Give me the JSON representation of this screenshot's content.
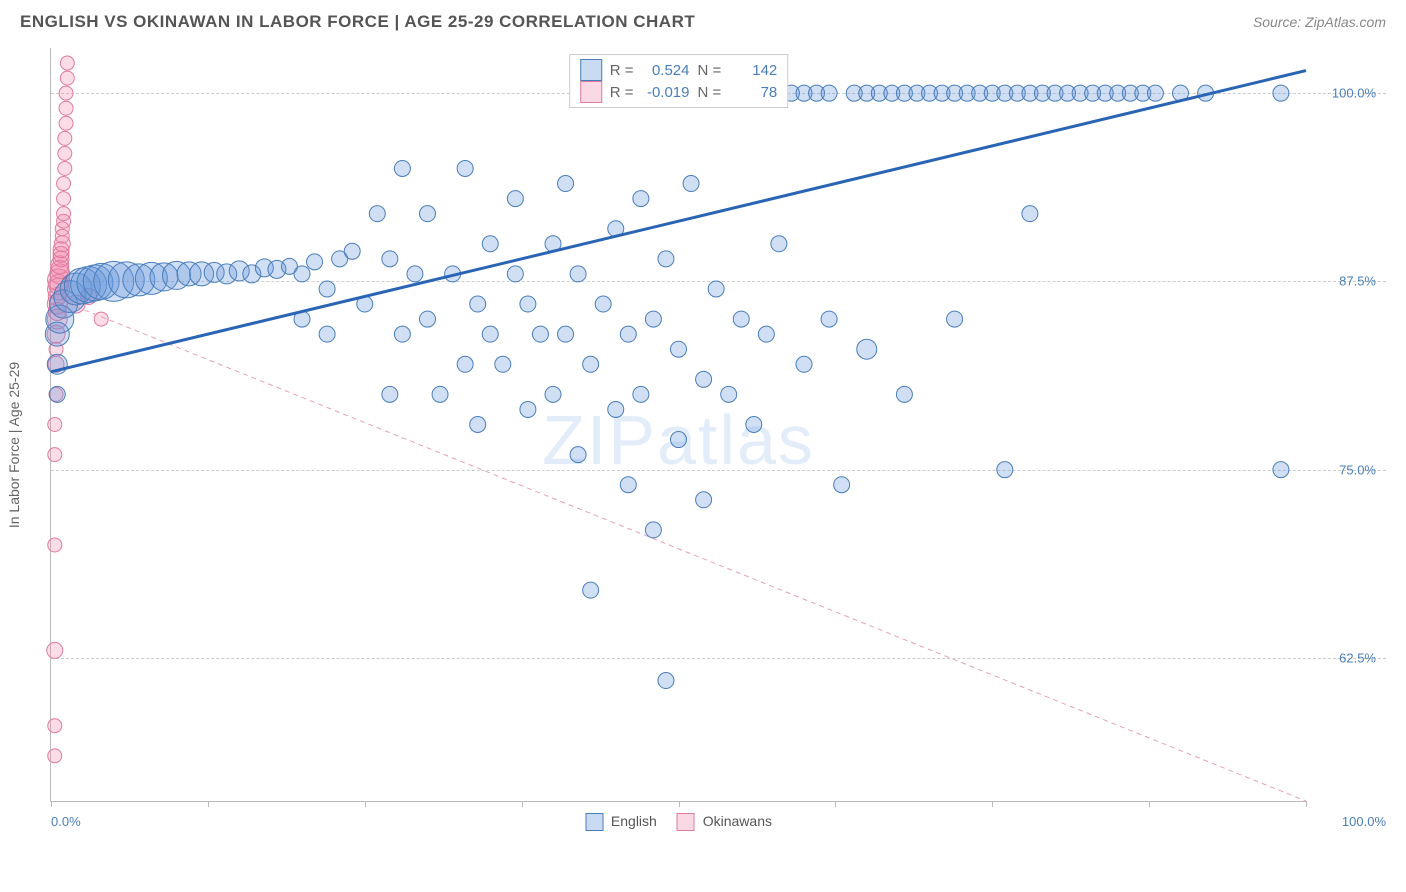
{
  "header": {
    "title": "ENGLISH VS OKINAWAN IN LABOR FORCE | AGE 25-29 CORRELATION CHART",
    "source": "Source: ZipAtlas.com"
  },
  "chart": {
    "type": "scatter",
    "ylabel": "In Labor Force | Age 25-29",
    "xlim": [
      0,
      100
    ],
    "ylim": [
      53,
      103
    ],
    "xticks": [
      0,
      12.5,
      25,
      37.5,
      50,
      62.5,
      75,
      87.5,
      100
    ],
    "x_axis_labels": {
      "left": "0.0%",
      "right": "100.0%"
    },
    "yticks": [
      {
        "v": 62.5,
        "label": "62.5%"
      },
      {
        "v": 75.0,
        "label": "75.0%"
      },
      {
        "v": 87.5,
        "label": "87.5%"
      },
      {
        "v": 100.0,
        "label": "100.0%"
      }
    ],
    "background_color": "#ffffff",
    "grid_color": "#cccccc",
    "watermark": "ZIPatlas",
    "series": {
      "english": {
        "label": "English",
        "color_fill": "rgba(100,150,220,0.30)",
        "color_stroke": "#4a7ebb",
        "marker_r_base": 7,
        "trend": {
          "x1": 0,
          "y1": 81.5,
          "x2": 100,
          "y2": 101.5,
          "stroke": "#2a64b4",
          "width": 3,
          "dash": "none"
        },
        "stats": {
          "R": "0.524",
          "N": "142"
        },
        "points": [
          {
            "x": 0.5,
            "y": 80,
            "r": 8
          },
          {
            "x": 0.5,
            "y": 82,
            "r": 10
          },
          {
            "x": 0.5,
            "y": 84,
            "r": 12
          },
          {
            "x": 0.7,
            "y": 85,
            "r": 14
          },
          {
            "x": 1,
            "y": 86,
            "r": 14
          },
          {
            "x": 1.5,
            "y": 86.5,
            "r": 16
          },
          {
            "x": 2,
            "y": 87,
            "r": 16
          },
          {
            "x": 2.5,
            "y": 87.2,
            "r": 18
          },
          {
            "x": 3,
            "y": 87.3,
            "r": 18
          },
          {
            "x": 3.5,
            "y": 87.4,
            "r": 18
          },
          {
            "x": 4,
            "y": 87.5,
            "r": 18
          },
          {
            "x": 5,
            "y": 87.5,
            "r": 20
          },
          {
            "x": 6,
            "y": 87.6,
            "r": 18
          },
          {
            "x": 7,
            "y": 87.6,
            "r": 16
          },
          {
            "x": 8,
            "y": 87.7,
            "r": 16
          },
          {
            "x": 9,
            "y": 87.8,
            "r": 14
          },
          {
            "x": 10,
            "y": 87.9,
            "r": 14
          },
          {
            "x": 11,
            "y": 88,
            "r": 12
          },
          {
            "x": 12,
            "y": 88,
            "r": 12
          },
          {
            "x": 13,
            "y": 88.1,
            "r": 10
          },
          {
            "x": 14,
            "y": 88,
            "r": 10
          },
          {
            "x": 15,
            "y": 88.2,
            "r": 10
          },
          {
            "x": 16,
            "y": 88,
            "r": 9
          },
          {
            "x": 17,
            "y": 88.4,
            "r": 9
          },
          {
            "x": 18,
            "y": 88.3,
            "r": 9
          },
          {
            "x": 19,
            "y": 88.5,
            "r": 8
          },
          {
            "x": 20,
            "y": 88,
            "r": 8
          },
          {
            "x": 21,
            "y": 88.8,
            "r": 8
          },
          {
            "x": 22,
            "y": 87,
            "r": 8
          },
          {
            "x": 23,
            "y": 89,
            "r": 8
          },
          {
            "x": 24,
            "y": 89.5,
            "r": 8
          },
          {
            "x": 20,
            "y": 85,
            "r": 8
          },
          {
            "x": 22,
            "y": 84,
            "r": 8
          },
          {
            "x": 25,
            "y": 86,
            "r": 8
          },
          {
            "x": 26,
            "y": 92,
            "r": 8
          },
          {
            "x": 27,
            "y": 80,
            "r": 8
          },
          {
            "x": 27,
            "y": 89,
            "r": 8
          },
          {
            "x": 28,
            "y": 95,
            "r": 8
          },
          {
            "x": 28,
            "y": 84,
            "r": 8
          },
          {
            "x": 29,
            "y": 88,
            "r": 8
          },
          {
            "x": 30,
            "y": 85,
            "r": 8
          },
          {
            "x": 30,
            "y": 92,
            "r": 8
          },
          {
            "x": 31,
            "y": 80,
            "r": 8
          },
          {
            "x": 32,
            "y": 88,
            "r": 8
          },
          {
            "x": 33,
            "y": 82,
            "r": 8
          },
          {
            "x": 33,
            "y": 95,
            "r": 8
          },
          {
            "x": 34,
            "y": 86,
            "r": 8
          },
          {
            "x": 34,
            "y": 78,
            "r": 8
          },
          {
            "x": 35,
            "y": 90,
            "r": 8
          },
          {
            "x": 35,
            "y": 84,
            "r": 8
          },
          {
            "x": 36,
            "y": 82,
            "r": 8
          },
          {
            "x": 37,
            "y": 88,
            "r": 8
          },
          {
            "x": 37,
            "y": 93,
            "r": 8
          },
          {
            "x": 38,
            "y": 79,
            "r": 8
          },
          {
            "x": 38,
            "y": 86,
            "r": 8
          },
          {
            "x": 39,
            "y": 84,
            "r": 8
          },
          {
            "x": 40,
            "y": 90,
            "r": 8
          },
          {
            "x": 40,
            "y": 80,
            "r": 8
          },
          {
            "x": 41,
            "y": 94,
            "r": 8
          },
          {
            "x": 41,
            "y": 84,
            "r": 8
          },
          {
            "x": 42,
            "y": 76,
            "r": 8
          },
          {
            "x": 42,
            "y": 88,
            "r": 8
          },
          {
            "x": 43,
            "y": 82,
            "r": 8
          },
          {
            "x": 43,
            "y": 67,
            "r": 8
          },
          {
            "x": 44,
            "y": 86,
            "r": 8
          },
          {
            "x": 45,
            "y": 79,
            "r": 8
          },
          {
            "x": 45,
            "y": 91,
            "r": 8
          },
          {
            "x": 46,
            "y": 84,
            "r": 8
          },
          {
            "x": 46,
            "y": 74,
            "r": 8
          },
          {
            "x": 47,
            "y": 93,
            "r": 8
          },
          {
            "x": 47,
            "y": 80,
            "r": 8
          },
          {
            "x": 48,
            "y": 85,
            "r": 8
          },
          {
            "x": 48,
            "y": 71,
            "r": 8
          },
          {
            "x": 49,
            "y": 89,
            "r": 8
          },
          {
            "x": 49,
            "y": 61,
            "r": 8
          },
          {
            "x": 50,
            "y": 83,
            "r": 8
          },
          {
            "x": 50,
            "y": 77,
            "r": 8
          },
          {
            "x": 51,
            "y": 94,
            "r": 8
          },
          {
            "x": 52,
            "y": 81,
            "r": 8
          },
          {
            "x": 52,
            "y": 73,
            "r": 8
          },
          {
            "x": 53,
            "y": 87,
            "r": 8
          },
          {
            "x": 54,
            "y": 80,
            "r": 8
          },
          {
            "x": 54,
            "y": 100,
            "r": 8
          },
          {
            "x": 55,
            "y": 85,
            "r": 8
          },
          {
            "x": 56,
            "y": 78,
            "r": 8
          },
          {
            "x": 56,
            "y": 100,
            "r": 8
          },
          {
            "x": 57,
            "y": 84,
            "r": 8
          },
          {
            "x": 58,
            "y": 90,
            "r": 8
          },
          {
            "x": 58,
            "y": 100,
            "r": 8
          },
          {
            "x": 59,
            "y": 100,
            "r": 8
          },
          {
            "x": 60,
            "y": 82,
            "r": 8
          },
          {
            "x": 60,
            "y": 100,
            "r": 8
          },
          {
            "x": 61,
            "y": 100,
            "r": 8
          },
          {
            "x": 62,
            "y": 85,
            "r": 8
          },
          {
            "x": 62,
            "y": 100,
            "r": 8
          },
          {
            "x": 63,
            "y": 74,
            "r": 8
          },
          {
            "x": 64,
            "y": 100,
            "r": 8
          },
          {
            "x": 65,
            "y": 83,
            "r": 10
          },
          {
            "x": 65,
            "y": 100,
            "r": 8
          },
          {
            "x": 66,
            "y": 100,
            "r": 8
          },
          {
            "x": 67,
            "y": 100,
            "r": 8
          },
          {
            "x": 68,
            "y": 80,
            "r": 8
          },
          {
            "x": 68,
            "y": 100,
            "r": 8
          },
          {
            "x": 69,
            "y": 100,
            "r": 8
          },
          {
            "x": 70,
            "y": 100,
            "r": 8
          },
          {
            "x": 71,
            "y": 100,
            "r": 8
          },
          {
            "x": 72,
            "y": 100,
            "r": 8
          },
          {
            "x": 72,
            "y": 85,
            "r": 8
          },
          {
            "x": 73,
            "y": 100,
            "r": 8
          },
          {
            "x": 74,
            "y": 100,
            "r": 8
          },
          {
            "x": 75,
            "y": 100,
            "r": 8
          },
          {
            "x": 76,
            "y": 100,
            "r": 8
          },
          {
            "x": 76,
            "y": 75,
            "r": 8
          },
          {
            "x": 77,
            "y": 100,
            "r": 8
          },
          {
            "x": 78,
            "y": 100,
            "r": 8
          },
          {
            "x": 78,
            "y": 92,
            "r": 8
          },
          {
            "x": 79,
            "y": 100,
            "r": 8
          },
          {
            "x": 80,
            "y": 100,
            "r": 8
          },
          {
            "x": 81,
            "y": 100,
            "r": 8
          },
          {
            "x": 82,
            "y": 100,
            "r": 8
          },
          {
            "x": 83,
            "y": 100,
            "r": 8
          },
          {
            "x": 84,
            "y": 100,
            "r": 8
          },
          {
            "x": 85,
            "y": 100,
            "r": 8
          },
          {
            "x": 86,
            "y": 100,
            "r": 8
          },
          {
            "x": 87,
            "y": 100,
            "r": 8
          },
          {
            "x": 88,
            "y": 100,
            "r": 8
          },
          {
            "x": 90,
            "y": 100,
            "r": 8
          },
          {
            "x": 92,
            "y": 100,
            "r": 8
          },
          {
            "x": 98,
            "y": 100,
            "r": 8
          },
          {
            "x": 98,
            "y": 75,
            "r": 8
          }
        ]
      },
      "okinawans": {
        "label": "Okinawans",
        "color_fill": "rgba(240,130,170,0.28)",
        "color_stroke": "#e07ba0",
        "marker_r_base": 7,
        "trend": {
          "x1": 0,
          "y1": 86.5,
          "x2": 100,
          "y2": 53,
          "stroke": "#e8a0b8",
          "width": 1,
          "dash": "5,4"
        },
        "stats": {
          "R": "-0.019",
          "N": "78"
        },
        "points": [
          {
            "x": 0.3,
            "y": 56,
            "r": 7
          },
          {
            "x": 0.3,
            "y": 58,
            "r": 7
          },
          {
            "x": 0.3,
            "y": 63,
            "r": 8
          },
          {
            "x": 0.3,
            "y": 70,
            "r": 7
          },
          {
            "x": 0.3,
            "y": 76,
            "r": 7
          },
          {
            "x": 0.3,
            "y": 78,
            "r": 7
          },
          {
            "x": 0.4,
            "y": 80,
            "r": 7
          },
          {
            "x": 0.4,
            "y": 82,
            "r": 8
          },
          {
            "x": 0.4,
            "y": 83,
            "r": 7
          },
          {
            "x": 0.4,
            "y": 84,
            "r": 9
          },
          {
            "x": 0.5,
            "y": 85,
            "r": 10
          },
          {
            "x": 0.5,
            "y": 85.5,
            "r": 9
          },
          {
            "x": 0.5,
            "y": 86,
            "r": 10
          },
          {
            "x": 0.5,
            "y": 86.5,
            "r": 9
          },
          {
            "x": 0.6,
            "y": 87,
            "r": 11
          },
          {
            "x": 0.6,
            "y": 87.3,
            "r": 10
          },
          {
            "x": 0.6,
            "y": 87.6,
            "r": 11
          },
          {
            "x": 0.7,
            "y": 88,
            "r": 10
          },
          {
            "x": 0.7,
            "y": 88.3,
            "r": 9
          },
          {
            "x": 0.7,
            "y": 88.6,
            "r": 9
          },
          {
            "x": 0.8,
            "y": 89,
            "r": 8
          },
          {
            "x": 0.8,
            "y": 89.3,
            "r": 8
          },
          {
            "x": 0.8,
            "y": 89.6,
            "r": 8
          },
          {
            "x": 0.9,
            "y": 90,
            "r": 8
          },
          {
            "x": 0.9,
            "y": 90.5,
            "r": 7
          },
          {
            "x": 0.9,
            "y": 91,
            "r": 7
          },
          {
            "x": 1.0,
            "y": 91.5,
            "r": 7
          },
          {
            "x": 1.0,
            "y": 92,
            "r": 7
          },
          {
            "x": 1.0,
            "y": 93,
            "r": 7
          },
          {
            "x": 1.0,
            "y": 94,
            "r": 7
          },
          {
            "x": 1.1,
            "y": 95,
            "r": 7
          },
          {
            "x": 1.1,
            "y": 96,
            "r": 7
          },
          {
            "x": 1.1,
            "y": 97,
            "r": 7
          },
          {
            "x": 1.2,
            "y": 98,
            "r": 7
          },
          {
            "x": 1.2,
            "y": 99,
            "r": 7
          },
          {
            "x": 1.2,
            "y": 100,
            "r": 7
          },
          {
            "x": 1.3,
            "y": 101,
            "r": 7
          },
          {
            "x": 1.3,
            "y": 102,
            "r": 7
          },
          {
            "x": 2,
            "y": 86,
            "r": 9
          },
          {
            "x": 3,
            "y": 86.5,
            "r": 8
          },
          {
            "x": 4,
            "y": 85,
            "r": 7
          }
        ]
      }
    }
  }
}
